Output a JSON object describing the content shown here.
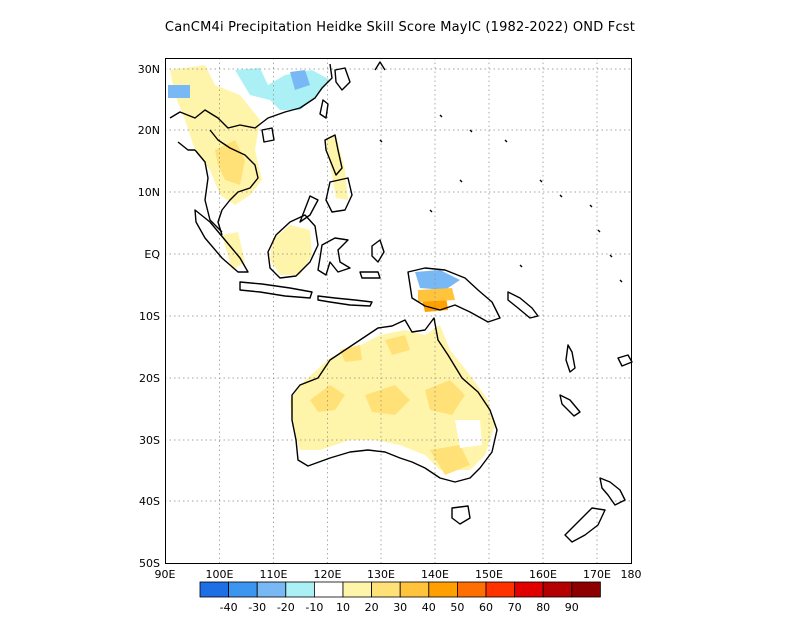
{
  "title": "CanCM4i  Precipitation Heidke Skill Score MayIC (1982-2022) OND Fcst",
  "map": {
    "lat_labels": [
      "30N",
      "20N",
      "10N",
      "EQ",
      "10S",
      "20S",
      "30S",
      "40S",
      "50S"
    ],
    "lon_labels": [
      "90E",
      "100E",
      "110E",
      "120E",
      "130E",
      "140E",
      "150E",
      "160E",
      "170E",
      "180"
    ],
    "lon_range": [
      90,
      180
    ],
    "lat_range": [
      -50,
      32
    ],
    "grid": "dotted"
  },
  "colorbar": {
    "labels": [
      "-40",
      "-30",
      "-20",
      "-10",
      "10",
      "20",
      "30",
      "40",
      "50",
      "60",
      "70",
      "80",
      "90"
    ],
    "colors": [
      "#1e6ee6",
      "#3c96f0",
      "#78b9f5",
      "#aaf0f5",
      "#ffffff",
      "#fff5aa",
      "#ffe178",
      "#ffc33c",
      "#ffa000",
      "#ff6e00",
      "#ff3200",
      "#e10000",
      "#b40000",
      "#8c0000"
    ]
  }
}
